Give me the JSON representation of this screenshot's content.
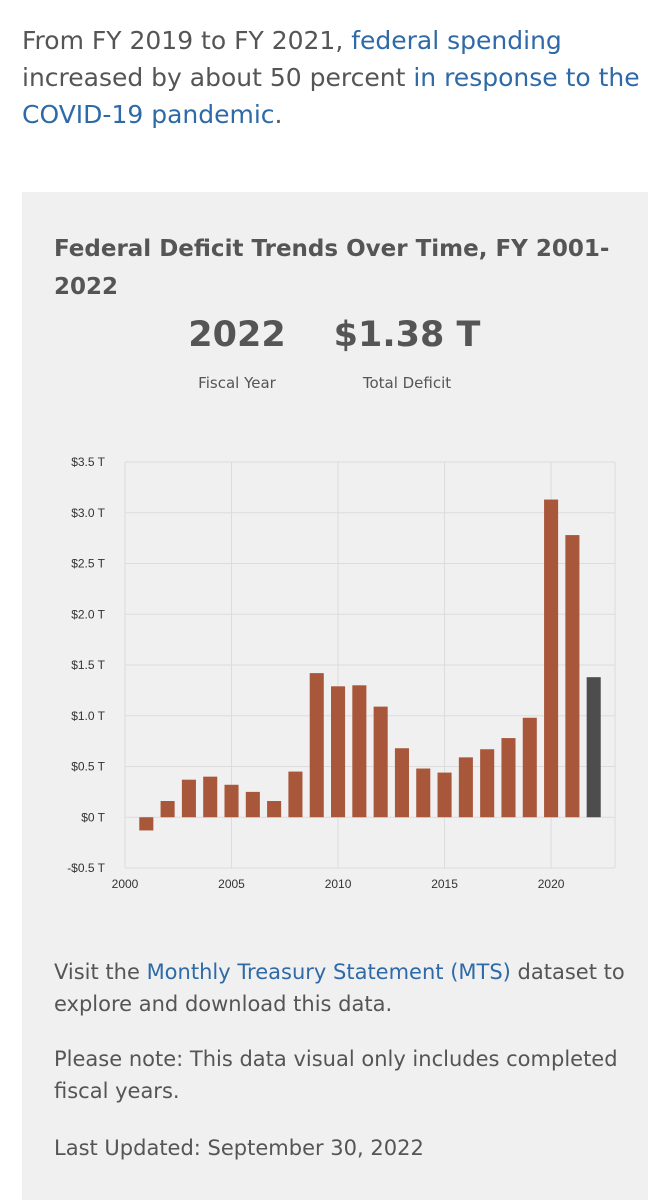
{
  "intro": {
    "text_1": "From FY 2019 to FY 2021, ",
    "link_1": "federal spending",
    "text_2": " increased by about 50 percent ",
    "link_2": "in response to the COVID-19 pandemic",
    "text_3": "."
  },
  "card": {
    "title": "Federal Deficit Trends Over Time, FY 2001-2022",
    "selected_year": "2022",
    "selected_year_label": "Fiscal Year",
    "selected_total": "$1.38 T",
    "selected_total_label": "Total Deficit"
  },
  "colors": {
    "bar": "#a8573a",
    "highlight": "#4d4d4d",
    "grid": "#dcdcdc",
    "link": "#2e6aa8"
  },
  "chart_data": {
    "type": "bar",
    "title": "Federal Deficit Trends Over Time, FY 2001-2022",
    "xlabel": "",
    "ylabel": "",
    "grid": true,
    "x": [
      2001,
      2002,
      2003,
      2004,
      2005,
      2006,
      2007,
      2008,
      2009,
      2010,
      2011,
      2012,
      2013,
      2014,
      2015,
      2016,
      2017,
      2018,
      2019,
      2020,
      2021,
      2022
    ],
    "values": [
      -0.13,
      0.16,
      0.37,
      0.4,
      0.32,
      0.25,
      0.16,
      0.45,
      1.42,
      1.29,
      1.3,
      1.09,
      0.68,
      0.48,
      0.44,
      0.59,
      0.67,
      0.78,
      0.98,
      3.13,
      2.78,
      1.38
    ],
    "highlight_x": 2022,
    "ylim": [
      -0.5,
      3.5
    ],
    "yticks": [
      3.5,
      3.0,
      2.5,
      2.0,
      1.5,
      1.0,
      0.5,
      0,
      -0.5
    ],
    "ytick_labels": [
      "$3.5 T",
      "$3.0 T",
      "$2.5 T",
      "$2.0 T",
      "$1.5 T",
      "$1.0 T",
      "$0.5 T",
      "$0 T",
      "-$0.5 T"
    ],
    "xlim": [
      2000,
      2023
    ],
    "xticks": [
      2000,
      2005,
      2010,
      2015,
      2020
    ],
    "xtick_labels": [
      "2000",
      "2005",
      "2010",
      "2015",
      "2020"
    ]
  },
  "footer": {
    "visit_1": "Visit the ",
    "visit_link": "Monthly Treasury Statement (MTS)",
    "visit_2": " dataset to explore and download this data.",
    "note": "Please note: This data visual only includes completed fiscal years.",
    "updated": "Last Updated: September 30, 2022"
  }
}
